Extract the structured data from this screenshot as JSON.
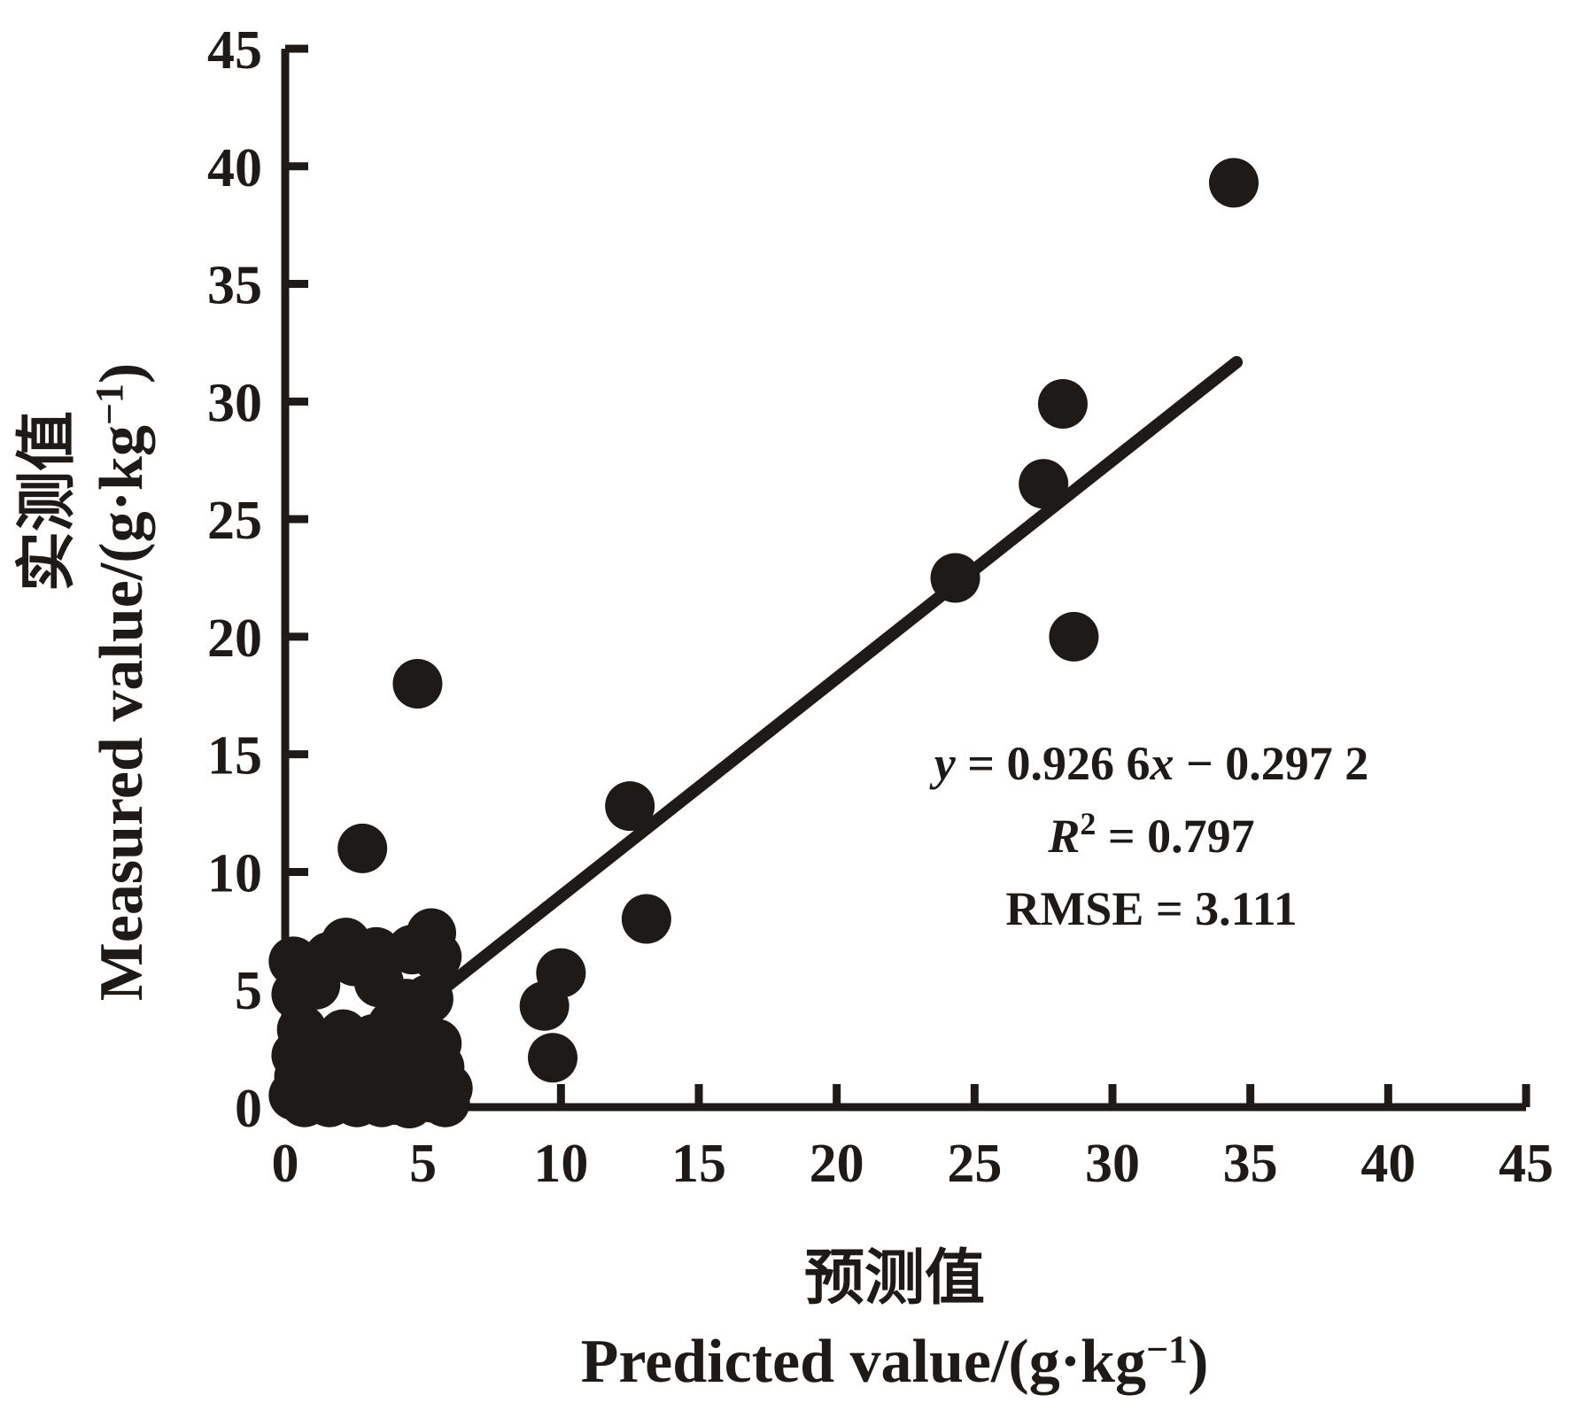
{
  "figure": {
    "background": "#ffffff",
    "ink": "#1e1a17"
  },
  "x_axis": {
    "label_zh": "预测值",
    "label_en_main": "Predicted value/(g·kg",
    "label_en_sup": "−1",
    "label_en_close": ")"
  },
  "y_axis": {
    "label_zh": "实测值",
    "label_en_main": "Measured value/(g·kg",
    "label_en_sup": "−1",
    "label_en_close": ")"
  },
  "annotation": {
    "eq_y": "y",
    "eq_mid": " = 0.926 6",
    "eq_x": "x",
    "eq_end": " − 0.297 2",
    "r_label": "R",
    "r_sup": "2",
    "r_rest": " = 0.797",
    "rmse_line": "RMSE = 3.111"
  },
  "chart_data": {
    "type": "scatter",
    "title": "",
    "xlabel": "预测值 Predicted value/(g·kg−1)",
    "ylabel": "实测值 Measured value/(g·kg−1)",
    "xlim": [
      0,
      45
    ],
    "ylim": [
      0,
      45
    ],
    "x_ticks": [
      0,
      5,
      10,
      15,
      20,
      25,
      30,
      35,
      40,
      45
    ],
    "y_ticks": [
      0,
      5,
      10,
      15,
      20,
      25,
      30,
      35,
      40,
      45
    ],
    "grid": false,
    "legend": "none",
    "marker": {
      "shape": "circle",
      "radius_px": 28,
      "color": "#1e1a17"
    },
    "points": [
      [
        0.3,
        0.5
      ],
      [
        0.5,
        1.3
      ],
      [
        0.8,
        0.4
      ],
      [
        1.0,
        1.9
      ],
      [
        1.3,
        0.6
      ],
      [
        1.5,
        1.2
      ],
      [
        1.8,
        0.3
      ],
      [
        2.0,
        1.6
      ],
      [
        2.3,
        0.7
      ],
      [
        2.5,
        2.1
      ],
      [
        2.8,
        0.4
      ],
      [
        3.0,
        1.3
      ],
      [
        3.3,
        0.5
      ],
      [
        3.6,
        1.9
      ],
      [
        3.8,
        0.8
      ],
      [
        4.0,
        0.3
      ],
      [
        4.3,
        1.5
      ],
      [
        4.6,
        0.6
      ],
      [
        5.0,
        1.1
      ],
      [
        5.3,
        0.4
      ],
      [
        5.6,
        1.7
      ],
      [
        5.9,
        0.8
      ],
      [
        1.3,
        2.7
      ],
      [
        2.1,
        3.1
      ],
      [
        3.2,
        2.9
      ],
      [
        4.1,
        2.5
      ],
      [
        0.6,
        3.3
      ],
      [
        4.8,
        3.1
      ],
      [
        5.5,
        2.7
      ],
      [
        3.9,
        3.5
      ],
      [
        0.4,
        2.2
      ],
      [
        1.7,
        2.2
      ],
      [
        2.7,
        1.0
      ],
      [
        4.9,
        2.0
      ],
      [
        5.8,
        0.2
      ],
      [
        0.7,
        0.2
      ],
      [
        1.6,
        0.2
      ],
      [
        2.6,
        0.2
      ],
      [
        3.5,
        0.2
      ],
      [
        4.5,
        0.15
      ],
      [
        0.4,
        4.8
      ],
      [
        0.3,
        6.2
      ],
      [
        0.9,
        5.6
      ],
      [
        1.1,
        5.2
      ],
      [
        1.6,
        6.4
      ],
      [
        2.2,
        7.0
      ],
      [
        2.5,
        6.2
      ],
      [
        3.3,
        6.6
      ],
      [
        3.4,
        5.3
      ],
      [
        4.4,
        4.4
      ],
      [
        4.6,
        6.7
      ],
      [
        5.2,
        4.6
      ],
      [
        5.3,
        7.4
      ],
      [
        5.5,
        6.4
      ],
      [
        9.4,
        4.3
      ],
      [
        9.7,
        2.1
      ],
      [
        10.0,
        5.7
      ],
      [
        13.1,
        8.0
      ],
      [
        2.8,
        11.0
      ],
      [
        4.8,
        18.0
      ],
      [
        12.5,
        12.8
      ],
      [
        24.3,
        22.5
      ],
      [
        27.5,
        26.5
      ],
      [
        28.2,
        29.9
      ],
      [
        28.6,
        20.0
      ],
      [
        34.4,
        39.3
      ]
    ],
    "trendline": {
      "slope": 0.9266,
      "intercept": -0.2972,
      "x_start": 5.45,
      "x_end": 34.5,
      "equation": "y = 0.926 6x − 0.297 2",
      "r_squared": 0.797,
      "rmse": 3.111
    }
  }
}
